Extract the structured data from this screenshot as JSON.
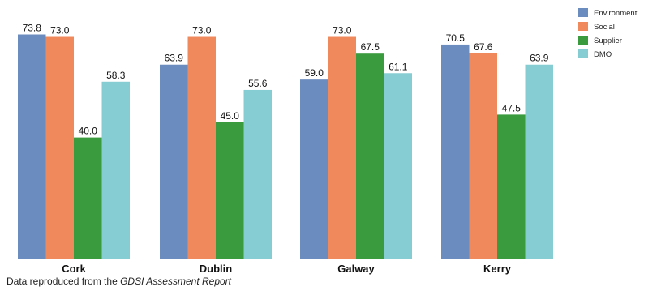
{
  "chart_data": {
    "type": "bar",
    "categories": [
      "Cork",
      "Dublin",
      "Galway",
      "Kerry"
    ],
    "series": [
      {
        "name": "Environment",
        "values": [
          73.8,
          63.9,
          59.0,
          70.5
        ],
        "labels": [
          "73.8",
          "63.9",
          "59.0",
          "70.5"
        ]
      },
      {
        "name": "Social",
        "values": [
          73.0,
          73.0,
          73.0,
          67.6
        ],
        "labels": [
          "73.0",
          "73.0",
          "73.0",
          "67.6"
        ]
      },
      {
        "name": "Supplier",
        "values": [
          40.0,
          45.0,
          67.5,
          47.5
        ],
        "labels": [
          "40.0",
          "45.0",
          "67.5",
          "47.5"
        ]
      },
      {
        "name": "DMO",
        "values": [
          58.3,
          55.6,
          61.1,
          63.9
        ],
        "labels": [
          "58.3",
          "55.6",
          "61.1",
          "63.9"
        ]
      }
    ],
    "value_labels_shown": true,
    "grid": false,
    "legend_position": "top-right",
    "colors": [
      "#6b8cbe",
      "#f08a5d",
      "#3a9a3e",
      "#86cdd3"
    ]
  },
  "footnote": {
    "prefix": "Data reproduced from the ",
    "source": "GDSI Assessment Report"
  }
}
